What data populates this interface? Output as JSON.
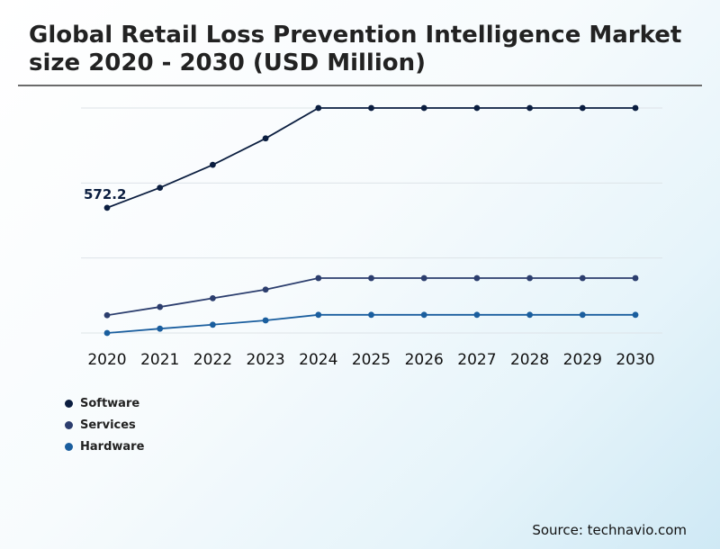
{
  "title": "Global Retail Loss Prevention Intelligence Market size 2020 - 2030 (USD Million)",
  "source": "Source: technavio.com",
  "chart_data": {
    "type": "line",
    "x": [
      "2020",
      "2021",
      "2022",
      "2023",
      "2024",
      "2025",
      "2026",
      "2027",
      "2028",
      "2029",
      "2030"
    ],
    "series": [
      {
        "name": "Software",
        "color": "#0b1e40",
        "values": [
          572.2,
          623,
          681,
          748,
          825,
          825,
          825,
          825,
          825,
          825,
          825
        ]
      },
      {
        "name": "Services",
        "color": "#2c3e6e",
        "values": [
          300,
          321,
          343,
          365,
          394,
          394,
          394,
          394,
          394,
          394,
          394
        ]
      },
      {
        "name": "Hardware",
        "color": "#1a5e9e",
        "values": [
          255,
          266,
          276,
          287,
          301,
          301,
          301,
          301,
          301,
          301,
          301
        ]
      }
    ],
    "data_labels": [
      {
        "series": "Software",
        "index": 0,
        "text": "572.2"
      }
    ],
    "ylim": [
      255,
      825
    ],
    "grid": true,
    "legend": "bottom-left"
  }
}
